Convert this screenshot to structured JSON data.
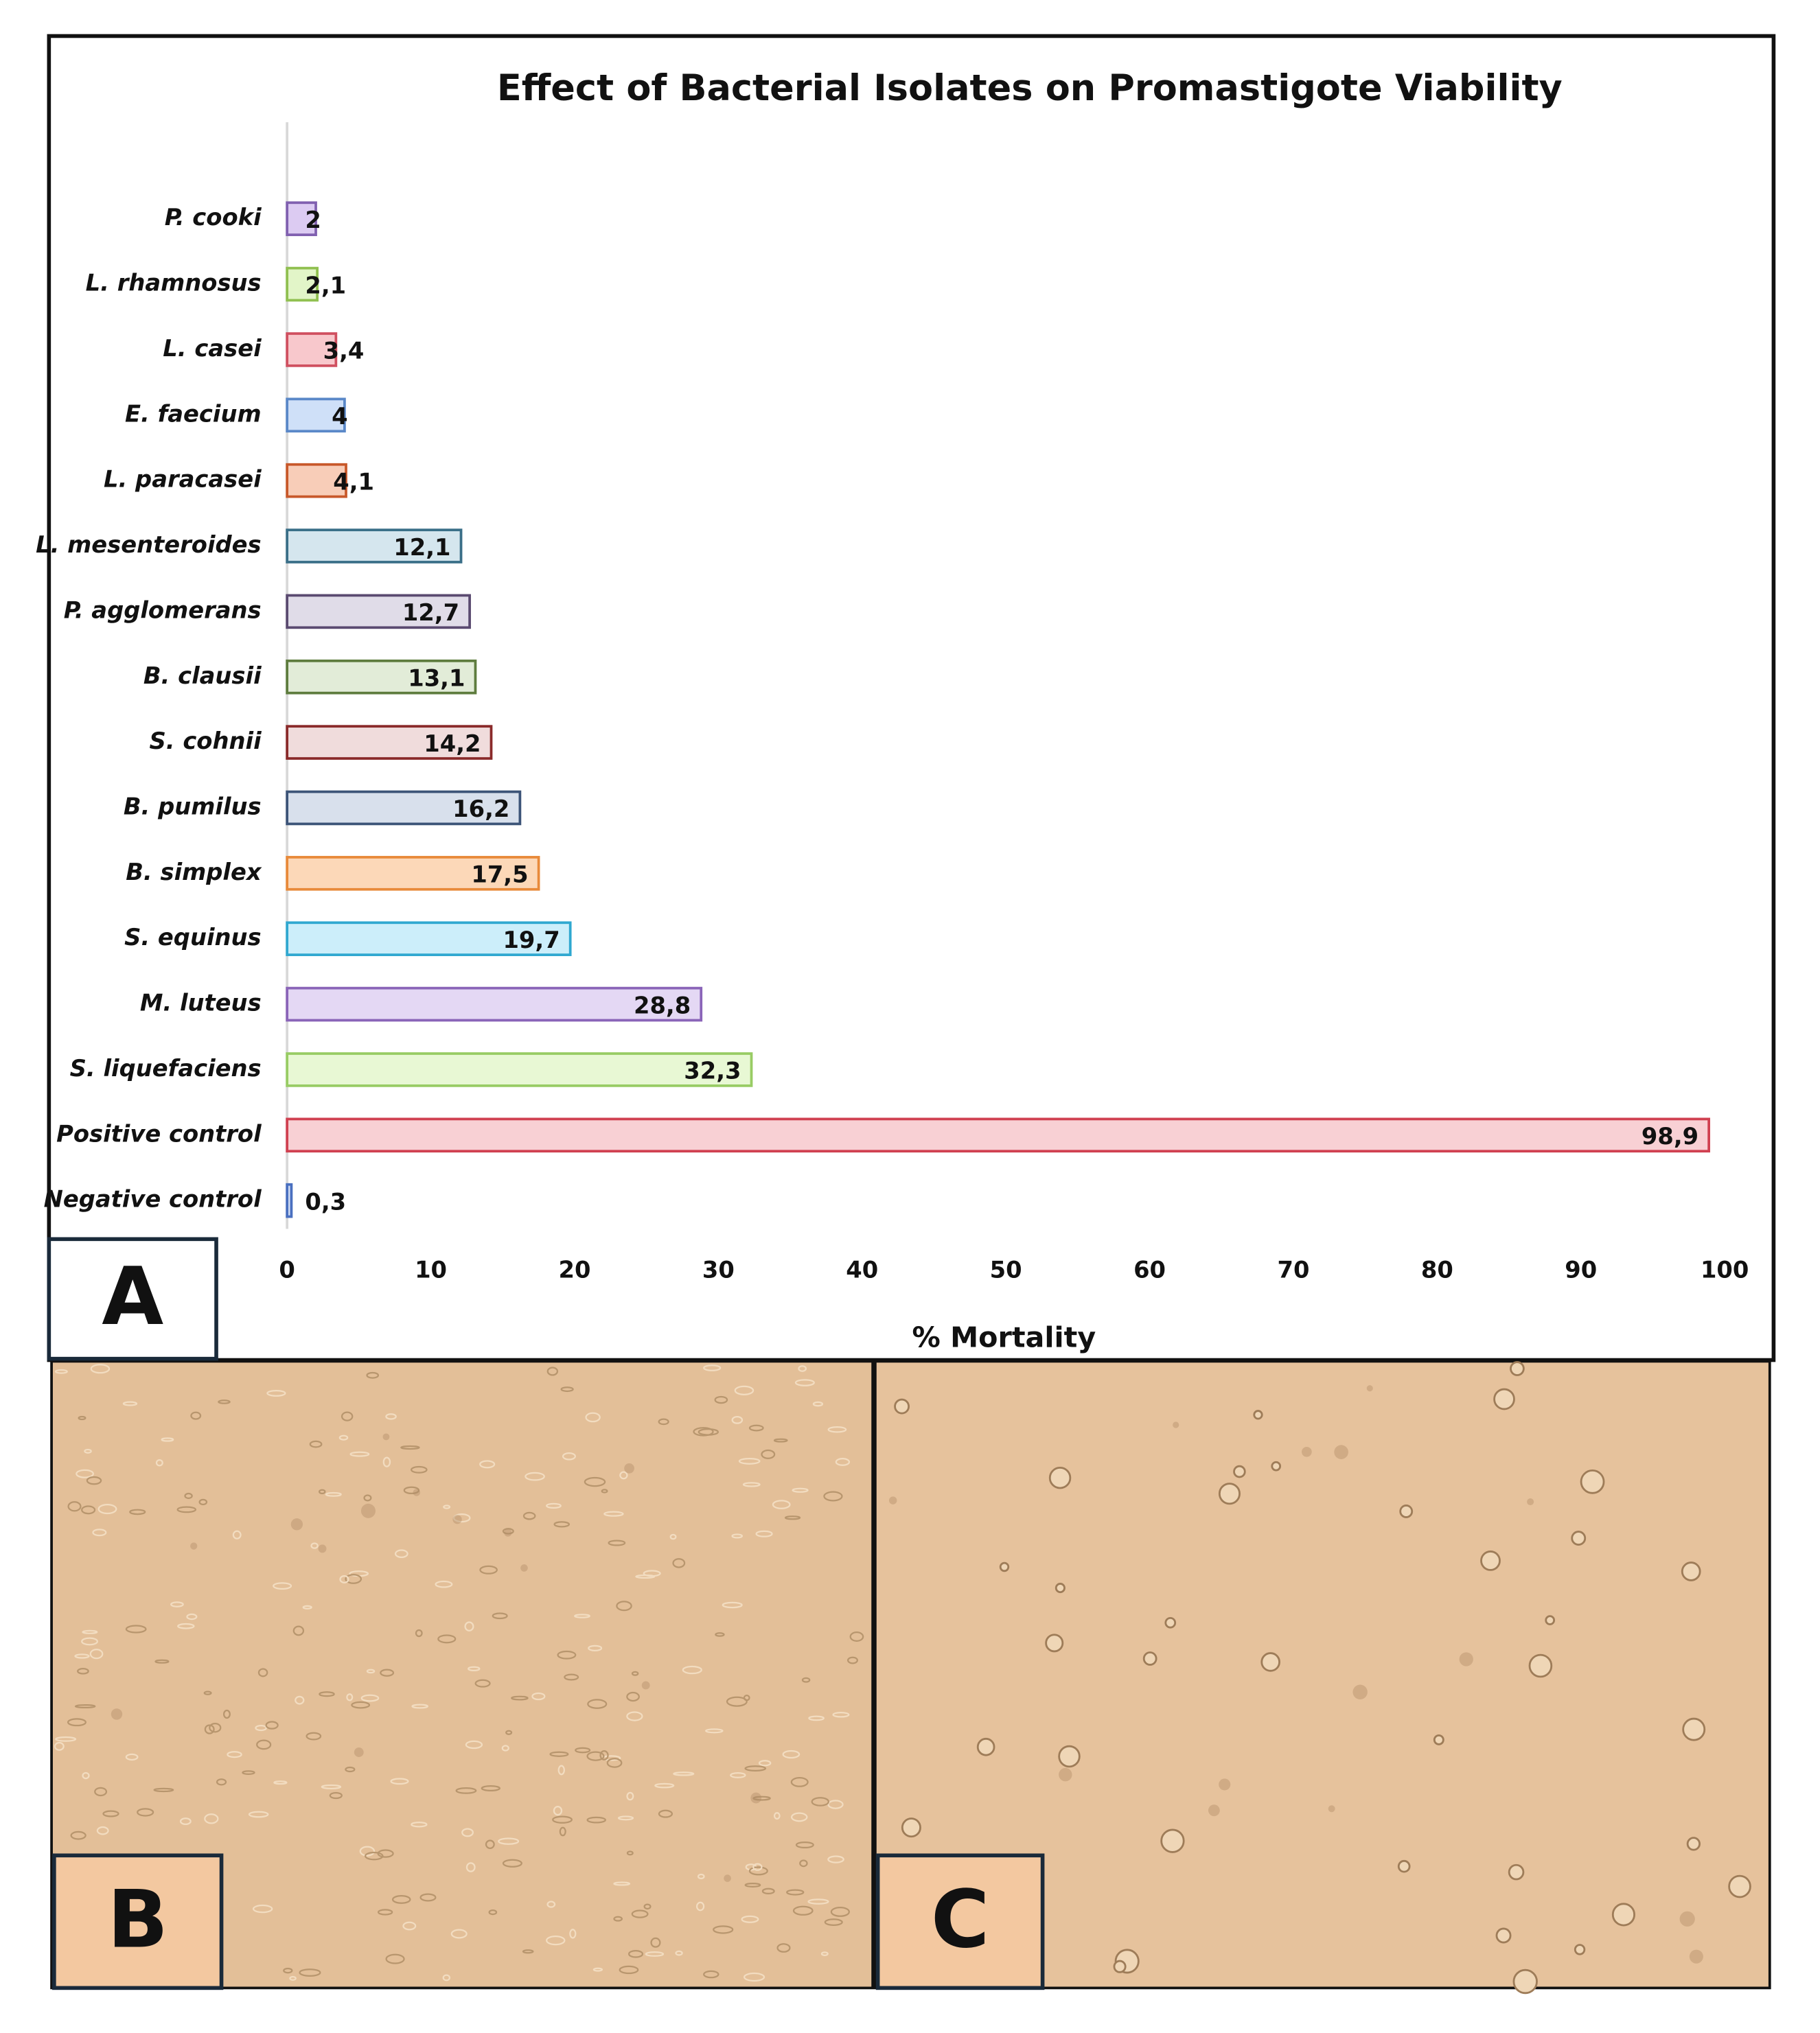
{
  "chart_data": {
    "type": "barh",
    "title": "Effect of Bacterial Isolates on Promastigote Viability",
    "xlabel": "% Mortality",
    "categories": [
      "P. cooki",
      "L. rhamnosus",
      "L. casei",
      "E. faecium",
      "L. paracasei",
      "L. mesenteroides",
      "P. agglomerans",
      "B. clausii",
      "S. cohnii",
      "B. pumilus",
      "B. simplex",
      "S. equinus",
      "M. luteus",
      "S. liquefaciens",
      "Positive control",
      "Negative control"
    ],
    "values": [
      2,
      2.1,
      3.4,
      4,
      4.1,
      12.1,
      12.7,
      13.1,
      14.2,
      16.2,
      17.5,
      19.7,
      28.8,
      32.3,
      98.9,
      0.3
    ],
    "value_labels": [
      "2",
      "2,1",
      "3,4",
      "4",
      "4,1",
      "12,1",
      "12,7",
      "13,1",
      "14,2",
      "16,2",
      "17,5",
      "19,7",
      "28,8",
      "32,3",
      "98,9",
      "0,3"
    ],
    "colors": [
      "#dccbf2",
      "#e2f5c8",
      "#f8c8cc",
      "#cfe0f8",
      "#f8cdb8",
      "#d5e6ee",
      "#e0dce8",
      "#e2ecd8",
      "#f0dcdc",
      "#d8e0ec",
      "#fcd8b8",
      "#cceefa",
      "#e4d8f4",
      "#e8f8d4",
      "#f8d0d4",
      "#d0dcf4"
    ],
    "edge_colors": [
      "#8060b0",
      "#90c050",
      "#d05060",
      "#5a88c8",
      "#c8582a",
      "#3a6f88",
      "#5a4a70",
      "#5e7c3e",
      "#8a2a2a",
      "#3c5478",
      "#e88a3a",
      "#30a8d0",
      "#8a64b8",
      "#98cc64",
      "#d04050",
      "#4a70c0"
    ],
    "xlim": [
      0,
      100
    ],
    "xticks": [
      0,
      10,
      20,
      30,
      40,
      50,
      60,
      70,
      80,
      90,
      100
    ],
    "grid": false
  },
  "panels": {
    "a": "A",
    "b": "B",
    "c": "C"
  }
}
